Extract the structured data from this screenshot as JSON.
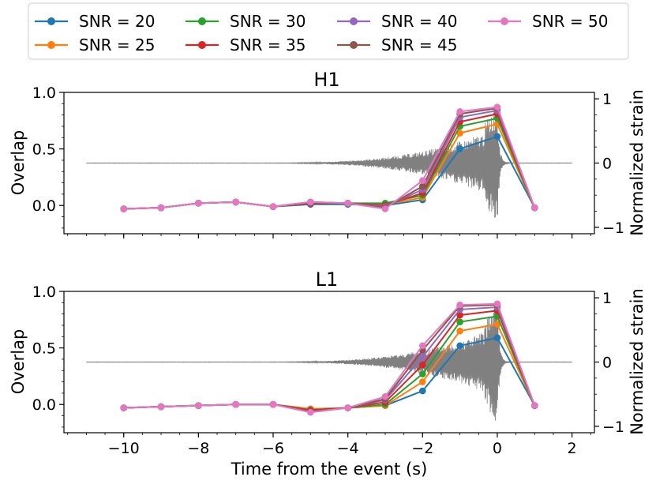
{
  "chart_data": {
    "type": "line",
    "x": [
      -10,
      -9,
      -8,
      -7,
      -6,
      -5,
      -4,
      -3,
      -2,
      -1,
      0,
      1
    ],
    "xlabel": "Time from the event (s)",
    "xlim": [
      -11.6,
      2.6
    ],
    "xticks": [
      -10,
      -8,
      -6,
      -4,
      -2,
      0,
      2
    ],
    "xtick_labels": [
      "−10",
      "−8",
      "−6",
      "−4",
      "−2",
      "0",
      "2"
    ],
    "y_left": {
      "label": "Overlap",
      "ylim": [
        -0.25,
        1.0
      ],
      "ticks": [
        0.0,
        0.5,
        1.0
      ],
      "tick_labels": [
        "0.0",
        "0.5",
        "1.0"
      ]
    },
    "y_right": {
      "label": "Normalized strain",
      "ylim": [
        -1.1,
        1.1
      ],
      "ticks": [
        -1,
        0,
        1
      ],
      "tick_labels": [
        "−1",
        "0",
        "1"
      ]
    },
    "legend_placement": "top",
    "series_colors": [
      "#1f77b4",
      "#ff7f0e",
      "#2ca02c",
      "#d62728",
      "#9467bd",
      "#8c564b",
      "#e377c2"
    ],
    "strain_color": "#808080",
    "legend": [
      "SNR = 20",
      "SNR = 25",
      "SNR = 30",
      "SNR = 35",
      "SNR = 40",
      "SNR = 45",
      "SNR = 50"
    ],
    "panels": [
      {
        "title": "H1",
        "series": [
          {
            "name": "SNR = 20",
            "values": [
              -0.03,
              -0.02,
              0.02,
              0.03,
              -0.01,
              0.01,
              0.01,
              0.0,
              0.05,
              0.5,
              0.61,
              -0.02
            ]
          },
          {
            "name": "SNR = 25",
            "values": [
              -0.03,
              -0.02,
              0.02,
              0.03,
              -0.01,
              0.02,
              0.02,
              0.01,
              0.07,
              0.64,
              0.72,
              -0.02
            ]
          },
          {
            "name": "SNR = 30",
            "values": [
              -0.03,
              -0.02,
              0.02,
              0.03,
              -0.01,
              0.02,
              0.02,
              0.02,
              0.09,
              0.7,
              0.77,
              -0.02
            ]
          },
          {
            "name": "SNR = 35",
            "values": [
              -0.03,
              -0.02,
              0.02,
              0.03,
              -0.01,
              0.02,
              0.02,
              0.0,
              0.11,
              0.74,
              0.81,
              -0.02
            ]
          },
          {
            "name": "SNR = 40",
            "values": [
              -0.03,
              -0.02,
              0.02,
              0.03,
              -0.01,
              0.03,
              0.02,
              -0.01,
              0.14,
              0.78,
              0.84,
              -0.02
            ]
          },
          {
            "name": "SNR = 45",
            "values": [
              -0.03,
              -0.02,
              0.02,
              0.03,
              -0.01,
              0.03,
              0.02,
              -0.02,
              0.17,
              0.81,
              0.86,
              -0.02
            ]
          },
          {
            "name": "SNR = 50",
            "values": [
              -0.03,
              -0.02,
              0.02,
              0.03,
              -0.01,
              0.03,
              0.02,
              -0.03,
              0.22,
              0.83,
              0.87,
              -0.02
            ]
          }
        ]
      },
      {
        "title": "L1",
        "series": [
          {
            "name": "SNR = 20",
            "values": [
              -0.03,
              -0.02,
              -0.01,
              0.0,
              0.0,
              -0.04,
              -0.03,
              -0.01,
              0.12,
              0.52,
              0.59,
              -0.01
            ]
          },
          {
            "name": "SNR = 25",
            "values": [
              -0.03,
              -0.02,
              -0.01,
              0.0,
              0.0,
              -0.04,
              -0.03,
              -0.01,
              0.2,
              0.65,
              0.71,
              -0.01
            ]
          },
          {
            "name": "SNR = 30",
            "values": [
              -0.03,
              -0.02,
              -0.01,
              0.0,
              0.0,
              -0.05,
              -0.03,
              0.0,
              0.27,
              0.73,
              0.78,
              -0.01
            ]
          },
          {
            "name": "SNR = 35",
            "values": [
              -0.03,
              -0.02,
              -0.01,
              0.0,
              0.0,
              -0.05,
              -0.03,
              0.02,
              0.35,
              0.79,
              0.83,
              -0.01
            ]
          },
          {
            "name": "SNR = 40",
            "values": [
              -0.03,
              -0.02,
              -0.01,
              0.0,
              0.0,
              -0.06,
              -0.03,
              0.04,
              0.42,
              0.84,
              0.86,
              -0.01
            ]
          },
          {
            "name": "SNR = 45",
            "values": [
              -0.03,
              -0.02,
              -0.01,
              0.0,
              0.0,
              -0.06,
              -0.03,
              0.05,
              0.48,
              0.87,
              0.88,
              -0.01
            ]
          },
          {
            "name": "SNR = 50",
            "values": [
              -0.03,
              -0.02,
              -0.01,
              0.0,
              0.0,
              -0.07,
              -0.03,
              0.07,
              0.52,
              0.88,
              0.89,
              -0.01
            ]
          }
        ]
      }
    ]
  }
}
